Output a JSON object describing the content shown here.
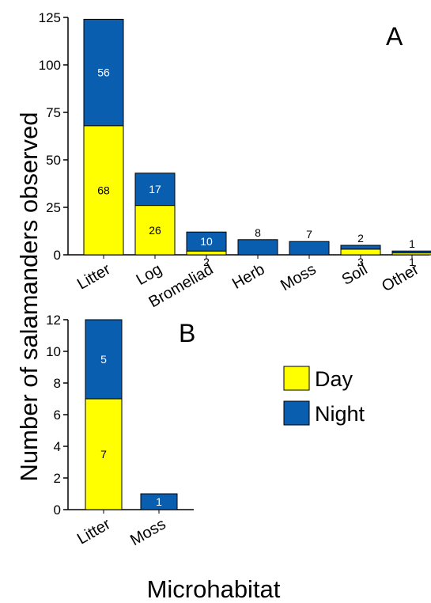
{
  "ylabel": "Number of salamanders observed",
  "xlabel": "Microhabitat",
  "legend": {
    "placement": "right of panel B",
    "items": [
      {
        "label": "Day",
        "color": "#ffff00"
      },
      {
        "label": "Night",
        "color": "#0a5eb0"
      }
    ]
  },
  "chart_data": [
    {
      "type": "bar",
      "stacked": true,
      "panel": "A",
      "categories": [
        "Litter",
        "Log",
        "Bromeliad",
        "Herb",
        "Moss",
        "Soil",
        "Other"
      ],
      "series": [
        {
          "name": "Day",
          "values": [
            68,
            26,
            2,
            0,
            0,
            3,
            1
          ],
          "labels": [
            "68",
            "26",
            "2",
            "",
            "",
            "3",
            "1"
          ]
        },
        {
          "name": "Night",
          "values": [
            56,
            17,
            10,
            8,
            7,
            2,
            1
          ],
          "labels": [
            "56",
            "17",
            "10",
            "8",
            "7",
            "2",
            "1"
          ]
        }
      ],
      "ylim": [
        0,
        125
      ],
      "yticks": [
        0,
        25,
        50,
        75,
        100,
        125
      ],
      "grid": false
    },
    {
      "type": "bar",
      "stacked": true,
      "panel": "B",
      "categories": [
        "Litter",
        "Moss"
      ],
      "series": [
        {
          "name": "Day",
          "values": [
            7,
            0
          ],
          "labels": [
            "7",
            ""
          ]
        },
        {
          "name": "Night",
          "values": [
            5,
            1
          ],
          "labels": [
            "5",
            "1"
          ]
        }
      ],
      "ylim": [
        0,
        12
      ],
      "yticks": [
        0,
        2,
        4,
        6,
        8,
        10,
        12
      ],
      "grid": false
    }
  ]
}
